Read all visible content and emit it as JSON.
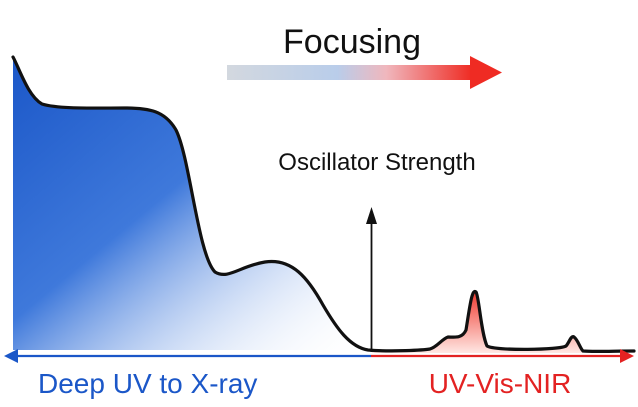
{
  "diagram": {
    "focusing_label": "Focusing",
    "oscillator_label": "Oscillator Strength",
    "left_region_label": "Deep UV to X-ray",
    "right_region_label": "UV-Vis-NIR"
  },
  "colors": {
    "blue": "#1b57c8",
    "red": "#e32222",
    "curve": "#111111",
    "arrow_gray": "#c9d0dd"
  }
}
